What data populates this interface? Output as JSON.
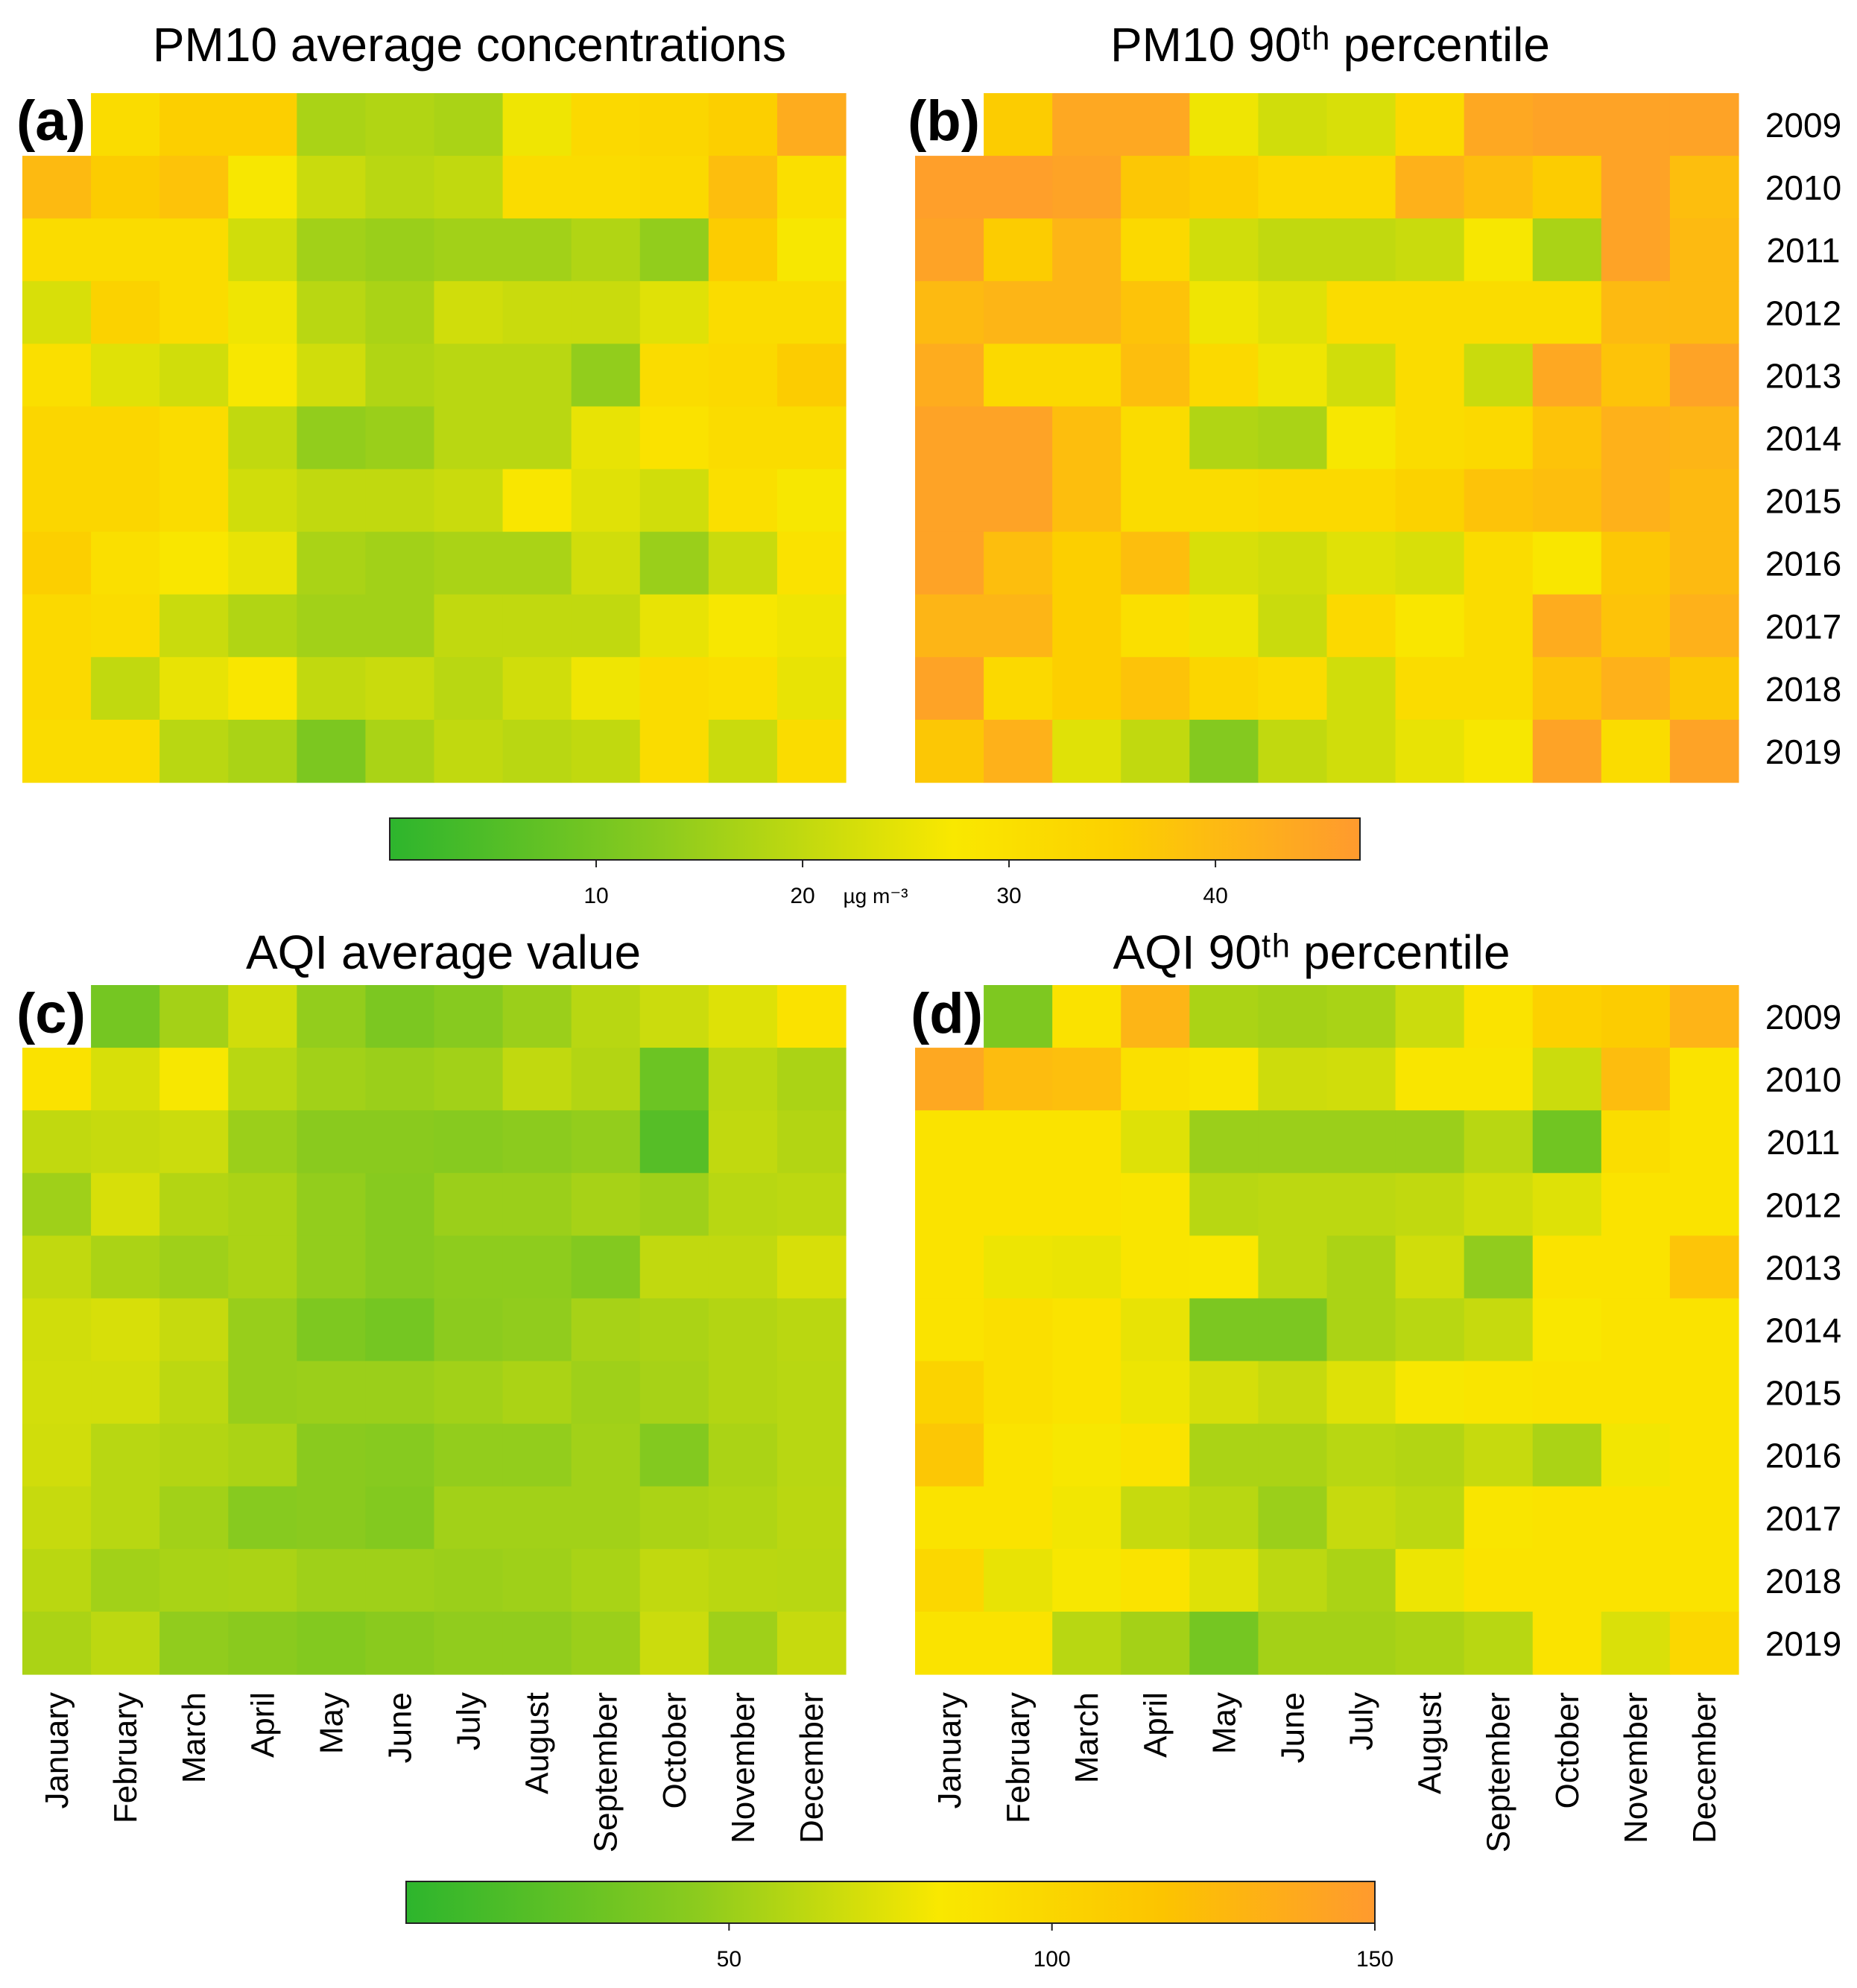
{
  "figure": {
    "months": [
      "January",
      "February",
      "March",
      "April",
      "May",
      "June",
      "July",
      "August",
      "September",
      "October",
      "November",
      "December"
    ],
    "years": [
      "2009",
      "2010",
      "2011",
      "2012",
      "2013",
      "2014",
      "2015",
      "2016",
      "2017",
      "2018",
      "2019"
    ]
  },
  "chart_data": [
    {
      "type": "heatmap",
      "panel_label": "(a)",
      "title": "PM10 average concentrations",
      "unit": "µg m⁻³",
      "x": [
        "January",
        "February",
        "March",
        "April",
        "May",
        "June",
        "July",
        "August",
        "September",
        "October",
        "November",
        "December"
      ],
      "y": [
        "2009",
        "2010",
        "2011",
        "2012",
        "2013",
        "2014",
        "2015",
        "2016",
        "2017",
        "2018",
        "2019"
      ],
      "scale": [
        0,
        47
      ],
      "values": [
        [
          null,
          31,
          35,
          35,
          17,
          18,
          17,
          26,
          32,
          33,
          35,
          43
        ],
        [
          40,
          36,
          38,
          27,
          21,
          19,
          20,
          31,
          31,
          32,
          39,
          30
        ],
        [
          31,
          31,
          31,
          22,
          16,
          15,
          16,
          16,
          18,
          14,
          36,
          27
        ],
        [
          23,
          34,
          31,
          26,
          19,
          17,
          22,
          21,
          21,
          24,
          31,
          31
        ],
        [
          30,
          24,
          22,
          27,
          22,
          18,
          19,
          19,
          14,
          31,
          32,
          36
        ],
        [
          33,
          33,
          31,
          20,
          14,
          15,
          19,
          19,
          25,
          29,
          31,
          31
        ],
        [
          33,
          33,
          31,
          22,
          20,
          20,
          21,
          28,
          24,
          22,
          30,
          27
        ],
        [
          35,
          30,
          28,
          25,
          17,
          16,
          17,
          17,
          22,
          15,
          21,
          29
        ],
        [
          32,
          31,
          21,
          18,
          16,
          16,
          20,
          20,
          20,
          25,
          27,
          26
        ],
        [
          32,
          20,
          25,
          28,
          20,
          21,
          19,
          22,
          26,
          31,
          30,
          25
        ],
        [
          31,
          31,
          19,
          17,
          11,
          17,
          20,
          19,
          20,
          31,
          21,
          31
        ]
      ]
    },
    {
      "type": "heatmap",
      "panel_label": "(b)",
      "title": "PM10 90ᵗʰ percentile",
      "unit": "µg m⁻³",
      "x": [
        "January",
        "February",
        "March",
        "April",
        "May",
        "June",
        "July",
        "August",
        "September",
        "October",
        "November",
        "December"
      ],
      "y": [
        "2009",
        "2010",
        "2011",
        "2012",
        "2013",
        "2014",
        "2015",
        "2016",
        "2017",
        "2018",
        "2019"
      ],
      "scale": [
        0,
        47
      ],
      "values": [
        [
          null,
          36,
          44,
          44,
          26,
          22,
          23,
          32,
          44,
          45,
          45,
          45
        ],
        [
          46,
          46,
          45,
          37,
          35,
          32,
          32,
          42,
          39,
          36,
          45,
          39
        ],
        [
          45,
          36,
          41,
          32,
          22,
          20,
          20,
          21,
          27,
          17,
          45,
          40
        ],
        [
          40,
          41,
          41,
          38,
          26,
          24,
          31,
          31,
          31,
          31,
          40,
          40
        ],
        [
          43,
          32,
          32,
          39,
          32,
          26,
          22,
          31,
          21,
          44,
          38,
          45
        ],
        [
          45,
          45,
          39,
          31,
          18,
          17,
          27,
          31,
          32,
          38,
          42,
          41
        ],
        [
          45,
          45,
          39,
          31,
          31,
          32,
          32,
          34,
          38,
          39,
          42,
          40
        ],
        [
          45,
          39,
          35,
          39,
          23,
          22,
          24,
          23,
          31,
          28,
          37,
          40
        ],
        [
          41,
          41,
          35,
          30,
          26,
          21,
          32,
          28,
          31,
          43,
          38,
          42
        ],
        [
          45,
          32,
          35,
          38,
          33,
          31,
          22,
          31,
          31,
          38,
          42,
          37
        ],
        [
          37,
          42,
          24,
          20,
          12,
          20,
          22,
          25,
          27,
          45,
          31,
          45
        ]
      ]
    },
    {
      "type": "heatmap",
      "panel_label": "(c)",
      "title": "AQI average value",
      "unit": "",
      "x": [
        "January",
        "February",
        "March",
        "April",
        "May",
        "June",
        "July",
        "August",
        "September",
        "October",
        "November",
        "December"
      ],
      "y": [
        "2009",
        "2010",
        "2011",
        "2012",
        "2013",
        "2014",
        "2015",
        "2016",
        "2017",
        "2018",
        "2019"
      ],
      "scale": [
        0,
        150
      ],
      "values": [
        [
          null,
          32,
          52,
          70,
          45,
          35,
          40,
          48,
          60,
          68,
          76,
          93
        ],
        [
          93,
          73,
          86,
          60,
          51,
          48,
          51,
          64,
          58,
          28,
          62,
          55
        ],
        [
          64,
          66,
          68,
          48,
          41,
          41,
          40,
          42,
          45,
          18,
          64,
          58
        ],
        [
          50,
          73,
          58,
          55,
          45,
          40,
          48,
          48,
          53,
          50,
          60,
          62
        ],
        [
          64,
          55,
          50,
          55,
          45,
          40,
          43,
          43,
          38,
          64,
          64,
          73
        ],
        [
          70,
          73,
          66,
          47,
          36,
          32,
          42,
          44,
          53,
          55,
          58,
          61
        ],
        [
          71,
          71,
          62,
          47,
          48,
          48,
          51,
          55,
          50,
          53,
          58,
          60
        ],
        [
          70,
          60,
          58,
          55,
          41,
          40,
          45,
          45,
          51,
          38,
          55,
          60
        ],
        [
          66,
          60,
          51,
          40,
          41,
          38,
          51,
          51,
          51,
          55,
          57,
          61
        ],
        [
          61,
          51,
          54,
          55,
          50,
          50,
          48,
          50,
          54,
          64,
          61,
          60
        ],
        [
          55,
          62,
          44,
          41,
          38,
          41,
          44,
          44,
          48,
          68,
          50,
          66
        ]
      ]
    },
    {
      "type": "heatmap",
      "panel_label": "(d)",
      "title": "AQI 90ᵗʰ percentile",
      "unit": "",
      "x": [
        "January",
        "February",
        "March",
        "April",
        "May",
        "June",
        "July",
        "August",
        "September",
        "October",
        "November",
        "December"
      ],
      "y": [
        "2009",
        "2010",
        "2011",
        "2012",
        "2013",
        "2014",
        "2015",
        "2016",
        "2017",
        "2018",
        "2019"
      ],
      "scale": [
        0,
        150
      ],
      "values": [
        [
          null,
          36,
          93,
          131,
          55,
          52,
          54,
          68,
          92,
          110,
          115,
          132
        ],
        [
          140,
          126,
          124,
          95,
          90,
          69,
          70,
          90,
          90,
          68,
          125,
          92
        ],
        [
          92,
          92,
          92,
          76,
          48,
          48,
          48,
          48,
          60,
          30,
          98,
          92
        ],
        [
          92,
          92,
          92,
          90,
          60,
          62,
          62,
          64,
          70,
          76,
          92,
          92
        ],
        [
          92,
          82,
          81,
          90,
          88,
          62,
          55,
          70,
          44,
          92,
          92,
          120
        ],
        [
          92,
          96,
          92,
          80,
          35,
          35,
          55,
          60,
          66,
          88,
          92,
          92
        ],
        [
          108,
          96,
          92,
          82,
          72,
          66,
          76,
          86,
          90,
          92,
          92,
          92
        ],
        [
          118,
          92,
          86,
          92,
          55,
          55,
          60,
          58,
          66,
          55,
          84,
          92
        ],
        [
          92,
          92,
          84,
          66,
          60,
          48,
          66,
          62,
          90,
          92,
          92,
          92
        ],
        [
          104,
          80,
          86,
          92,
          76,
          62,
          55,
          82,
          92,
          92,
          92,
          92
        ],
        [
          92,
          92,
          60,
          52,
          32,
          52,
          52,
          55,
          60,
          92,
          74,
          104
        ]
      ]
    }
  ],
  "colorbars": [
    {
      "range": [
        0,
        47
      ],
      "ticks": [
        "10",
        "20",
        "30",
        "40"
      ],
      "tick_values": [
        10,
        20,
        30,
        40
      ],
      "unit_label": "µg m⁻³",
      "unit_value": 25
    },
    {
      "range": [
        0,
        150
      ],
      "ticks": [
        "50",
        "100",
        "150"
      ],
      "tick_values": [
        50,
        100,
        150
      ],
      "unit_label": "",
      "unit_value": null
    }
  ],
  "colors": {
    "low": "#2db52d",
    "mid_green": "#8ccb1e",
    "yellow": "#f9e800",
    "high": "#ff9a2e"
  }
}
